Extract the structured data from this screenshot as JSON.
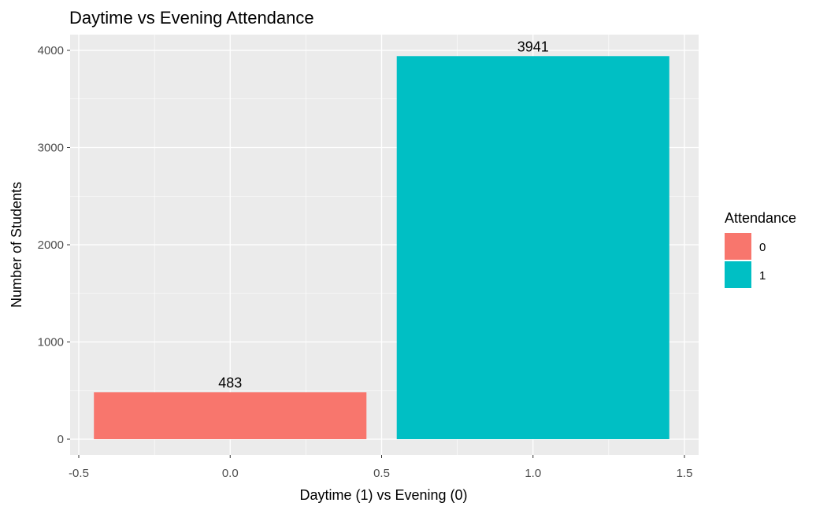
{
  "chart_data": {
    "type": "bar",
    "title": "Daytime vs Evening Attendance",
    "xlabel": "Daytime (1) vs Evening (0)",
    "ylabel": "Number of Students",
    "xlim": [
      -0.5,
      1.5
    ],
    "ylim": [
      0,
      4000
    ],
    "x_ticks": [
      "-0.5",
      "0.0",
      "0.5",
      "1.0",
      "1.5"
    ],
    "y_ticks": [
      "0",
      "1000",
      "2000",
      "3000",
      "4000"
    ],
    "bar_width": 0.9,
    "grid": true,
    "legend": {
      "title": "Attendance",
      "position": "right",
      "entries": [
        {
          "label": "0",
          "color": "#F8766D"
        },
        {
          "label": "1",
          "color": "#00BFC4"
        }
      ]
    },
    "series": [
      {
        "name": "0",
        "x": 0,
        "value": 483,
        "label": "483",
        "color": "#F8766D"
      },
      {
        "name": "1",
        "x": 1,
        "value": 3941,
        "label": "3941",
        "color": "#00BFC4"
      }
    ]
  }
}
